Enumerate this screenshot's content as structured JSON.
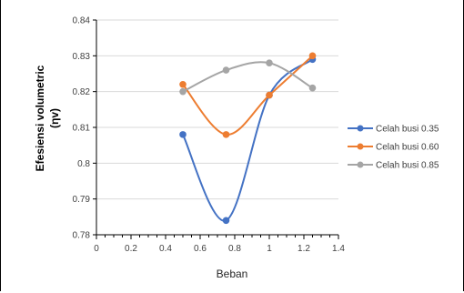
{
  "chart_data": {
    "type": "line",
    "xlabel": "Beban",
    "ylabel_line1": "Efesiensi volumetric",
    "ylabel_line2": "(ηv)",
    "xlim": [
      0,
      1.4
    ],
    "ylim": [
      0.78,
      0.84
    ],
    "xticks": [
      "0",
      "0.2",
      "0.4",
      "0.6",
      "0.8",
      "1",
      "1.2",
      "1.4"
    ],
    "yticks": [
      "0.78",
      "0.79",
      "0.8",
      "0.81",
      "0.82",
      "0.83",
      "0.84"
    ],
    "grid": "horizontal",
    "legend_position": "right",
    "x": [
      0.5,
      0.75,
      1.0,
      1.25
    ],
    "series": [
      {
        "name": "Celah busi 0.35",
        "color": "#4472C4",
        "values": [
          0.808,
          0.784,
          0.819,
          0.829
        ]
      },
      {
        "name": "Celah busi 0.60",
        "color": "#ED7D31",
        "values": [
          0.822,
          0.808,
          0.819,
          0.83
        ]
      },
      {
        "name": "Celah busi 0.85",
        "color": "#A5A5A5",
        "values": [
          0.82,
          0.826,
          0.828,
          0.821
        ]
      }
    ]
  }
}
